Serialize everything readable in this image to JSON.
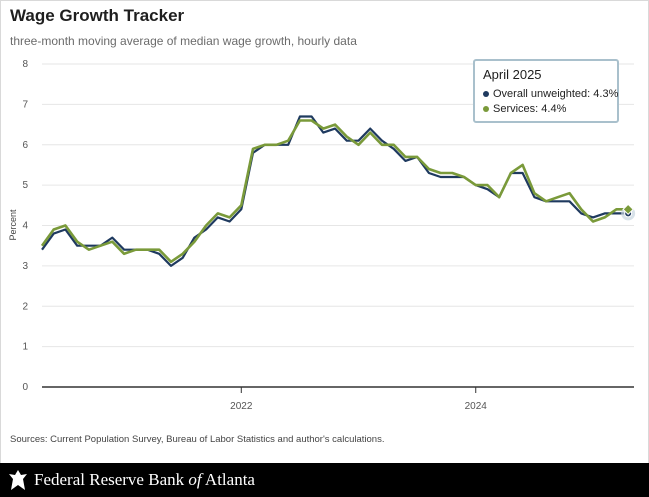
{
  "title": "Wage Growth Tracker",
  "subtitle": "three-month moving average of median wage growth, hourly data",
  "source": "Sources: Current Population Survey, Bureau of Labor Statistics and author's calculations.",
  "footer": {
    "bank_main": "Federal Reserve Bank ",
    "bank_of": "of",
    "bank_city": " Atlanta"
  },
  "tooltip": {
    "title": "April 2025",
    "overall": "Overall unweighted: 4.3%",
    "services": "Services: 4.4%"
  },
  "colors": {
    "overall": "#1f3a5f",
    "services": "#7a9a3a",
    "grid": "#e6e6e6",
    "axis": "#333333"
  },
  "chart_data": {
    "type": "line",
    "title": "Wage Growth Tracker",
    "ylabel": "Percent",
    "ylim": [
      0,
      8
    ],
    "yticks": [
      0,
      1,
      2,
      3,
      4,
      5,
      6,
      7,
      8
    ],
    "xlim": [
      2020.3,
      2025.35
    ],
    "xticks": [
      {
        "value": 2022.0,
        "label": "2022"
      },
      {
        "value": 2024.0,
        "label": "2024"
      }
    ],
    "series": [
      {
        "name": "Overall unweighted",
        "x": [
          2020.3,
          2020.4,
          2020.5,
          2020.6,
          2020.7,
          2020.8,
          2020.9,
          2021.0,
          2021.1,
          2021.2,
          2021.3,
          2021.4,
          2021.5,
          2021.6,
          2021.7,
          2021.8,
          2021.9,
          2022.0,
          2022.1,
          2022.2,
          2022.3,
          2022.4,
          2022.5,
          2022.6,
          2022.7,
          2022.8,
          2022.9,
          2023.0,
          2023.1,
          2023.2,
          2023.3,
          2023.4,
          2023.5,
          2023.6,
          2023.7,
          2023.8,
          2023.9,
          2024.0,
          2024.1,
          2024.2,
          2024.3,
          2024.4,
          2024.5,
          2024.6,
          2024.7,
          2024.8,
          2024.9,
          2025.0,
          2025.1,
          2025.2,
          2025.3
        ],
        "values": [
          3.4,
          3.8,
          3.9,
          3.5,
          3.5,
          3.5,
          3.7,
          3.4,
          3.4,
          3.4,
          3.3,
          3.0,
          3.2,
          3.7,
          3.9,
          4.2,
          4.1,
          4.4,
          5.8,
          6.0,
          6.0,
          6.0,
          6.7,
          6.7,
          6.3,
          6.4,
          6.1,
          6.1,
          6.4,
          6.1,
          5.9,
          5.6,
          5.7,
          5.3,
          5.2,
          5.2,
          5.2,
          5.0,
          4.9,
          4.7,
          5.3,
          5.3,
          4.7,
          4.6,
          4.6,
          4.6,
          4.3,
          4.2,
          4.3,
          4.3,
          4.3
        ]
      },
      {
        "name": "Services",
        "x": [
          2020.3,
          2020.4,
          2020.5,
          2020.6,
          2020.7,
          2020.8,
          2020.9,
          2021.0,
          2021.1,
          2021.2,
          2021.3,
          2021.4,
          2021.5,
          2021.6,
          2021.7,
          2021.8,
          2021.9,
          2022.0,
          2022.1,
          2022.2,
          2022.3,
          2022.4,
          2022.5,
          2022.6,
          2022.7,
          2022.8,
          2022.9,
          2023.0,
          2023.1,
          2023.2,
          2023.3,
          2023.4,
          2023.5,
          2023.6,
          2023.7,
          2023.8,
          2023.9,
          2024.0,
          2024.1,
          2024.2,
          2024.3,
          2024.4,
          2024.5,
          2024.6,
          2024.7,
          2024.8,
          2024.9,
          2025.0,
          2025.1,
          2025.2,
          2025.3
        ],
        "values": [
          3.5,
          3.9,
          4.0,
          3.6,
          3.4,
          3.5,
          3.6,
          3.3,
          3.4,
          3.4,
          3.4,
          3.1,
          3.3,
          3.6,
          4.0,
          4.3,
          4.2,
          4.5,
          5.9,
          6.0,
          6.0,
          6.1,
          6.6,
          6.6,
          6.4,
          6.5,
          6.2,
          6.0,
          6.3,
          6.0,
          6.0,
          5.7,
          5.7,
          5.4,
          5.3,
          5.3,
          5.2,
          5.0,
          5.0,
          4.7,
          5.3,
          5.5,
          4.8,
          4.6,
          4.7,
          4.8,
          4.4,
          4.1,
          4.2,
          4.4,
          4.4
        ]
      }
    ]
  }
}
